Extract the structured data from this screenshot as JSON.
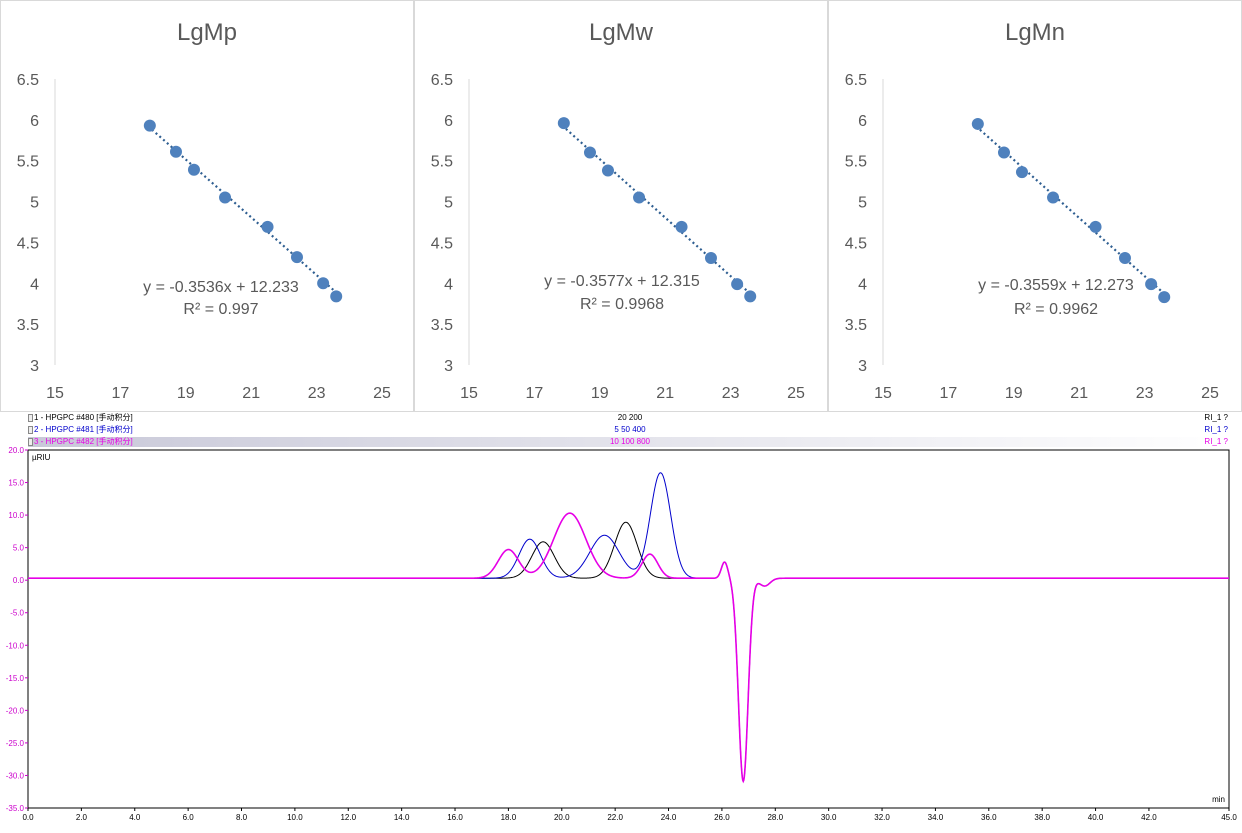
{
  "calibration_panels": [
    {
      "title": "LgMp",
      "equation": "y = -0.3536x + 12.233",
      "r2": "R² = 0.997"
    },
    {
      "title": "LgMw",
      "equation": "y = -0.3577x + 12.315",
      "r2": "R² = 0.9968"
    },
    {
      "title": "LgMn",
      "equation": "y = -0.3559x + 12.273",
      "r2": "R² = 0.9962"
    }
  ],
  "chromatogram": {
    "legend": [
      {
        "label": "1 - HPGPC #480 [手动积分]",
        "center": "20 200",
        "right": "RI_1 ?",
        "color": "#000000"
      },
      {
        "label": "2 - HPGPC #481 [手动积分]",
        "center": "5 50 400",
        "right": "RI_1 ?",
        "color": "#0000cc"
      },
      {
        "label": "3 - HPGPC #482 [手动积分]",
        "center": "10 100 800",
        "right": "RI_1 ?",
        "color": "#e600e6"
      }
    ],
    "y_unit": "µRIU",
    "x_unit": "min"
  },
  "colors": {
    "scatter": "#4f81bd",
    "trend": "#2e5e91",
    "trace1": "#000000",
    "trace2": "#0000cc",
    "trace3": "#e600e6",
    "axis_text": "#595959"
  },
  "chart_data": [
    {
      "type": "scatter",
      "title": "LgMp",
      "x": [
        17.9,
        18.7,
        19.25,
        20.2,
        21.5,
        22.4,
        23.2,
        23.6
      ],
      "y": [
        5.93,
        5.61,
        5.39,
        5.05,
        4.69,
        4.32,
        4.0,
        3.84
      ],
      "trendline": {
        "slope": -0.3536,
        "intercept": 12.233
      },
      "xlim": [
        15,
        25
      ],
      "ylim": [
        3,
        6.5
      ],
      "xticks": [
        "15",
        "17",
        "19",
        "21",
        "23",
        "25"
      ],
      "yticks": [
        "3",
        "3.5",
        "4",
        "4.5",
        "5",
        "5.5",
        "6",
        "6.5"
      ]
    },
    {
      "type": "scatter",
      "title": "LgMw",
      "x": [
        17.9,
        18.7,
        19.25,
        20.2,
        21.5,
        22.4,
        23.2,
        23.6
      ],
      "y": [
        5.96,
        5.6,
        5.38,
        5.05,
        4.69,
        4.31,
        3.99,
        3.84
      ],
      "trendline": {
        "slope": -0.3577,
        "intercept": 12.315
      },
      "xlim": [
        15,
        25
      ],
      "ylim": [
        3,
        6.5
      ],
      "xticks": [
        "15",
        "17",
        "19",
        "21",
        "23",
        "25"
      ],
      "yticks": [
        "3",
        "3.5",
        "4",
        "4.5",
        "5",
        "5.5",
        "6",
        "6.5"
      ]
    },
    {
      "type": "scatter",
      "title": "LgMn",
      "x": [
        17.9,
        18.7,
        19.25,
        20.2,
        21.5,
        22.4,
        23.2,
        23.6
      ],
      "y": [
        5.95,
        5.6,
        5.36,
        5.05,
        4.69,
        4.31,
        3.99,
        3.83
      ],
      "trendline": {
        "slope": -0.3559,
        "intercept": 12.273
      },
      "xlim": [
        15,
        25
      ],
      "ylim": [
        3,
        6.5
      ],
      "xticks": [
        "15",
        "17",
        "19",
        "21",
        "23",
        "25"
      ],
      "yticks": [
        "3",
        "3.5",
        "4",
        "4.5",
        "5",
        "5.5",
        "6",
        "6.5"
      ]
    },
    {
      "type": "line",
      "title": "",
      "xlim": [
        0,
        45
      ],
      "ylim": [
        -35,
        20
      ],
      "xticks": [
        "0.0",
        "2.0",
        "4.0",
        "6.0",
        "8.0",
        "10.0",
        "12.0",
        "14.0",
        "16.0",
        "18.0",
        "20.0",
        "22.0",
        "24.0",
        "26.0",
        "28.0",
        "30.0",
        "32.0",
        "34.0",
        "36.0",
        "38.0",
        "40.0",
        "42.0",
        "45.0"
      ],
      "yticks": [
        "20.0",
        "15.0",
        "10.0",
        "5.0",
        "0.0",
        "-5.0",
        "-10.0",
        "-15.0",
        "-20.0",
        "-25.0",
        "-30.0",
        "-35.0"
      ],
      "baseline": 0.3,
      "series": [
        {
          "name": "1 - HPGPC #480",
          "color": "#000000",
          "peaks": [
            [
              19.3,
              5.6,
              0.42
            ],
            [
              22.4,
              8.6,
              0.42
            ]
          ]
        },
        {
          "name": "2 - HPGPC #481",
          "color": "#0000cc",
          "peaks": [
            [
              18.8,
              6.0,
              0.4
            ],
            [
              21.6,
              6.6,
              0.55
            ],
            [
              23.7,
              16.2,
              0.38
            ]
          ]
        },
        {
          "name": "3 - HPGPC #482",
          "color": "#e600e6",
          "peaks": [
            [
              18.0,
              4.4,
              0.38
            ],
            [
              20.3,
              10.0,
              0.6
            ],
            [
              23.3,
              3.7,
              0.3
            ]
          ]
        }
      ],
      "negative_peak": {
        "x": 26.8,
        "y": -31.2,
        "width": 0.18
      }
    }
  ]
}
